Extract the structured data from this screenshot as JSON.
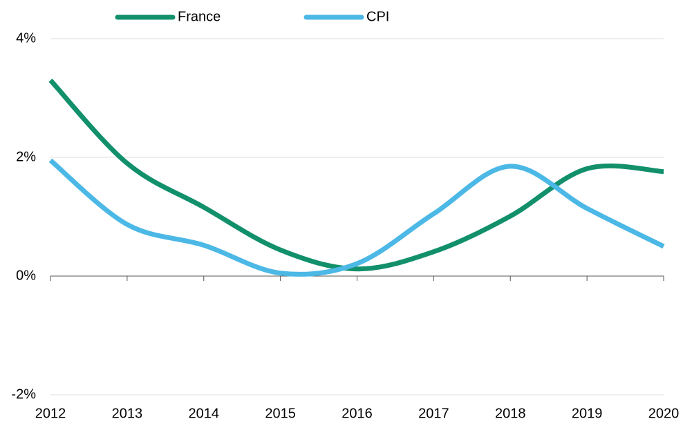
{
  "chart_data": {
    "type": "line",
    "x": [
      2012,
      2013,
      2014,
      2015,
      2016,
      2017,
      2018,
      2019,
      2020
    ],
    "xlim": [
      2012,
      2020
    ],
    "xticks": [
      2012,
      2013,
      2014,
      2015,
      2016,
      2017,
      2018,
      2019,
      2020
    ],
    "ylim": [
      -2,
      4
    ],
    "yticks": [
      {
        "value": -2,
        "label": "-2%"
      },
      {
        "value": 0,
        "label": "0%"
      },
      {
        "value": 2,
        "label": "2%"
      },
      {
        "value": 4,
        "label": "4%"
      }
    ],
    "grid": true,
    "legend": "top",
    "series": [
      {
        "name": "France",
        "color": "#12906b",
        "values": [
          3.3,
          1.9,
          1.16,
          0.44,
          0.12,
          0.41,
          1.01,
          1.81,
          1.76
        ]
      },
      {
        "name": "CPI",
        "color": "#4cb8e6",
        "values": [
          1.95,
          0.87,
          0.52,
          0.05,
          0.21,
          1.05,
          1.85,
          1.14,
          0.5
        ]
      }
    ]
  }
}
